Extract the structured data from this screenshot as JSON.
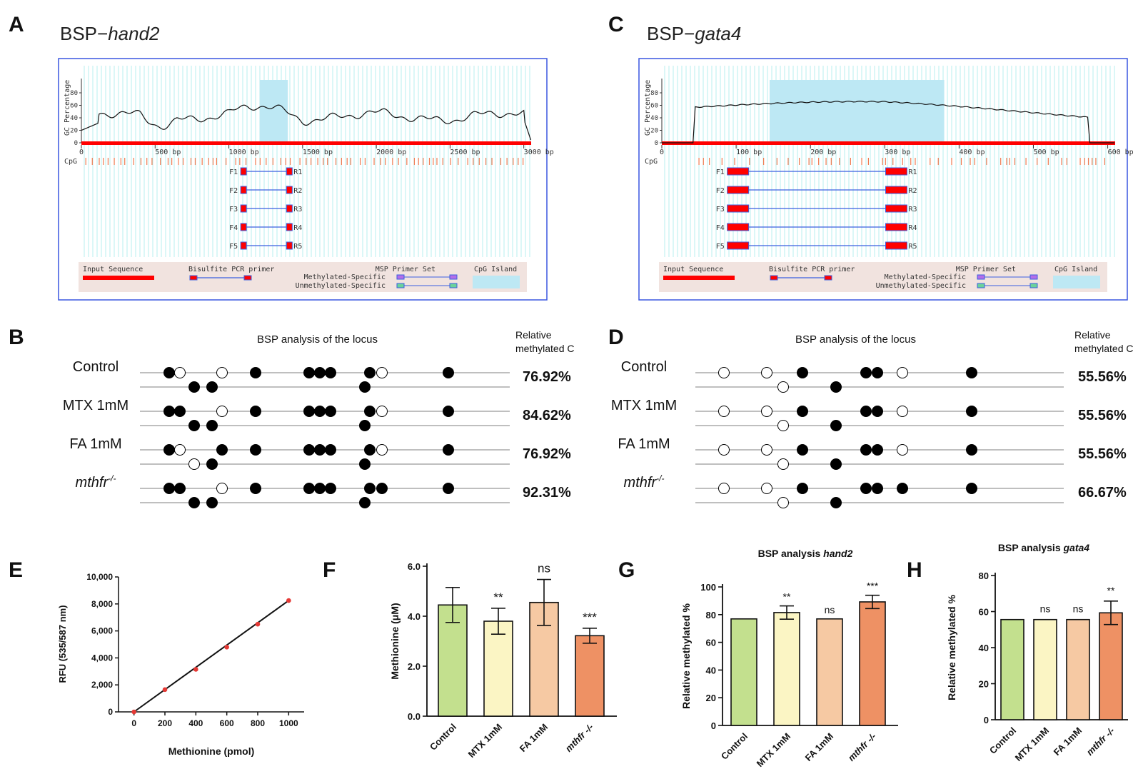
{
  "panel_labels": {
    "a": "A",
    "b": "B",
    "c": "C",
    "d": "D",
    "e": "E",
    "f": "F",
    "g": "G",
    "h": "H"
  },
  "colors": {
    "input_seq": "#ff0000",
    "cpg_island": "#bde8f4",
    "grid": "#b7efef",
    "frame": "#3a57e0",
    "primer_blue": "#3b5fe0",
    "cpg_tick": "#f07a50",
    "meth_violet": "#b36ee8",
    "unmeth_green": "#6cd29a",
    "bar_colors": [
      "#c3e08e",
      "#fbf5c4",
      "#f6c9a3",
      "#ee9164"
    ]
  },
  "bsp_panels": [
    {
      "id": "A",
      "prefix": "BSP−",
      "gene": "hand2",
      "axis_label": "GC Percentage",
      "y_ticks": [
        "0",
        "20",
        "40",
        "60",
        "80"
      ],
      "x_ticks": [
        "0",
        "500 bp",
        "1000 bp",
        "1500 bp",
        "2000 bp",
        "2500 bp",
        "3000 bp"
      ],
      "length_bp": 3050,
      "cpg_label": "CpG",
      "primers": [
        "F1",
        "F2",
        "F3",
        "F4",
        "F5"
      ],
      "reverse": [
        "R1",
        "R2",
        "R3",
        "R4",
        "R5"
      ],
      "legend": {
        "input": "Input Sequence",
        "bisulfite": "Bisulfite PCR primer",
        "msp": "MSP Primer Set",
        "meth": "Methylated-Specific",
        "unmeth": "Unmethylated-Specific",
        "island": "CpG Island"
      }
    },
    {
      "id": "C",
      "prefix": "BSP−",
      "gene": "gata4",
      "axis_label": "GC Percentage",
      "y_ticks": [
        "0",
        "20",
        "40",
        "60",
        "80"
      ],
      "x_ticks": [
        "0",
        "100 bp",
        "200 bp",
        "300 bp",
        "400 bp",
        "500 bp",
        "600 bp"
      ],
      "length_bp": 610,
      "cpg_label": "CpG",
      "primers": [
        "F1",
        "F2",
        "F3",
        "F4",
        "F5"
      ],
      "reverse": [
        "R1",
        "R2",
        "R3",
        "R4",
        "R5"
      ],
      "legend": {
        "input": "Input Sequence",
        "bisulfite": "Bisulfite PCR primer",
        "msp": "MSP Primer Set",
        "meth": "Methylated-Specific",
        "unmeth": "Unmethylated-Specific",
        "island": "CpG Island"
      }
    }
  ],
  "locus_panels": [
    {
      "id": "B",
      "title": "BSP analysis of the locus",
      "rel_label_1": "Relative",
      "rel_label_2": "methylated C",
      "rows": [
        {
          "label": "Control",
          "italic": false,
          "value": "76.92%",
          "top": [
            1,
            0,
            0,
            1,
            1,
            1,
            1,
            1,
            0,
            1
          ],
          "bottom": [
            1,
            1,
            1
          ]
        },
        {
          "label": "MTX 1mM",
          "italic": false,
          "value": "84.62%",
          "top": [
            1,
            1,
            0,
            1,
            1,
            1,
            1,
            1,
            0,
            1
          ],
          "bottom": [
            1,
            1,
            1
          ]
        },
        {
          "label": "FA 1mM",
          "italic": false,
          "value": "76.92%",
          "top": [
            1,
            0,
            1,
            1,
            1,
            1,
            1,
            1,
            0,
            1
          ],
          "bottom": [
            0,
            1,
            1
          ]
        },
        {
          "label": "mthfr",
          "sup": "-/-",
          "italic": true,
          "value": "92.31%",
          "top": [
            1,
            1,
            0,
            1,
            1,
            1,
            1,
            1,
            1,
            1
          ],
          "bottom": [
            1,
            1,
            1
          ]
        }
      ]
    },
    {
      "id": "D",
      "title": "BSP analysis of the locus",
      "rel_label_1": "Relative",
      "rel_label_2": "methylated C",
      "rows": [
        {
          "label": "Control",
          "italic": false,
          "value": "55.56%",
          "top": [
            0,
            0,
            1,
            1,
            1,
            0,
            1
          ],
          "bottom": [
            0,
            1
          ]
        },
        {
          "label": "MTX 1mM",
          "italic": false,
          "value": "55.56%",
          "top": [
            0,
            0,
            1,
            1,
            1,
            0,
            1
          ],
          "bottom": [
            0,
            1
          ]
        },
        {
          "label": "FA 1mM",
          "italic": false,
          "value": "55.56%",
          "top": [
            0,
            0,
            1,
            1,
            1,
            0,
            1
          ],
          "bottom": [
            0,
            1
          ]
        },
        {
          "label": "mthfr",
          "sup": "-/-",
          "italic": true,
          "value": "66.67%",
          "top": [
            0,
            0,
            1,
            1,
            1,
            1,
            1
          ],
          "bottom": [
            0,
            1
          ]
        }
      ]
    }
  ],
  "chart_data": [
    {
      "id": "E",
      "type": "scatter",
      "x": [
        0,
        200,
        400,
        600,
        800,
        1000
      ],
      "y": [
        0,
        1650,
        3150,
        4800,
        6500,
        8250
      ],
      "xlabel": "Methionine (pmol)",
      "ylabel": "RFU (535/587 nm)",
      "x_ticks": [
        "0",
        "200",
        "400",
        "600",
        "800",
        "1000"
      ],
      "y_ticks": [
        "0",
        "2,000",
        "4,000",
        "6,000",
        "8,000",
        "10,000"
      ],
      "xlim": [
        -100,
        1100
      ],
      "ylim": [
        0,
        10000
      ],
      "fit": {
        "slope": 8.25,
        "intercept": 0
      }
    },
    {
      "id": "F",
      "type": "bar",
      "categories": [
        "Control",
        "MTX 1mM",
        "FA 1mM",
        "mthfr -/-"
      ],
      "values": [
        4.45,
        3.8,
        4.55,
        3.22
      ],
      "errors": [
        0.7,
        0.52,
        0.92,
        0.3
      ],
      "significance": [
        "",
        "**",
        "ns",
        "***"
      ],
      "ylabel": "Methionine (μM)",
      "y_ticks": [
        "0.0",
        "2.0",
        "4.0",
        "6.0"
      ],
      "ylim": [
        0,
        6
      ]
    },
    {
      "id": "G",
      "type": "bar",
      "title_prefix": "BSP analysis ",
      "title_gene": "hand2",
      "categories": [
        "Control",
        "MTX 1mM",
        "FA 1mM",
        "mthfr -/-"
      ],
      "values": [
        76.92,
        81.5,
        76.92,
        89.2
      ],
      "errors": [
        0,
        4.8,
        0,
        4.8
      ],
      "significance": [
        "",
        "**",
        "ns",
        "***"
      ],
      "ylabel": "Relative methylated %",
      "y_ticks": [
        "0",
        "20",
        "40",
        "60",
        "80",
        "100"
      ],
      "ylim": [
        0,
        100
      ]
    },
    {
      "id": "H",
      "type": "bar",
      "title_prefix": "BSP analysis ",
      "title_gene": "gata4",
      "categories": [
        "Control",
        "MTX 1mM",
        "FA 1mM",
        "mthfr -/-"
      ],
      "values": [
        55.56,
        55.56,
        55.56,
        59.3
      ],
      "errors": [
        0,
        0,
        0,
        6.5
      ],
      "significance": [
        "",
        "ns",
        "ns",
        "**"
      ],
      "ylabel": "Relative methylated %",
      "y_ticks": [
        "0",
        "20",
        "40",
        "60",
        "80"
      ],
      "ylim": [
        0,
        80
      ]
    }
  ]
}
